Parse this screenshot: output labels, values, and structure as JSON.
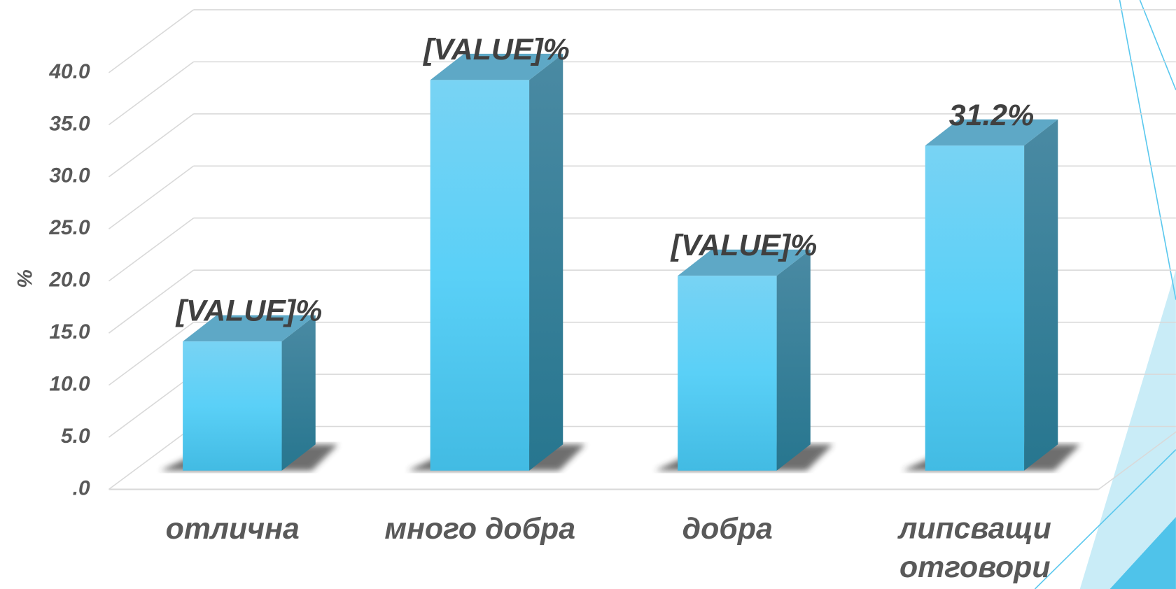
{
  "chart_data": {
    "type": "bar3d",
    "y_label": "%",
    "categories": [
      "отлична",
      "много добра",
      "добра",
      "липсващи отговори"
    ],
    "values": [
      12.4,
      37.5,
      18.7,
      31.2
    ],
    "value_labels": [
      "[VALUE]%",
      "[VALUE]%",
      "[VALUE]%",
      "31.2%"
    ],
    "color": "#5bcdf5",
    "ylim": [
      0,
      40
    ],
    "yticks": [
      {
        "value": 0,
        "label": ".0"
      },
      {
        "value": 5,
        "label": "5.0"
      },
      {
        "value": 10,
        "label": "10.0"
      },
      {
        "value": 15,
        "label": "15.0"
      },
      {
        "value": 20,
        "label": "20.0"
      },
      {
        "value": 25,
        "label": "25.0"
      },
      {
        "value": 30,
        "label": "30.0"
      },
      {
        "value": 35,
        "label": "35.0"
      },
      {
        "value": 40,
        "label": "40.0"
      }
    ],
    "grid": true
  }
}
